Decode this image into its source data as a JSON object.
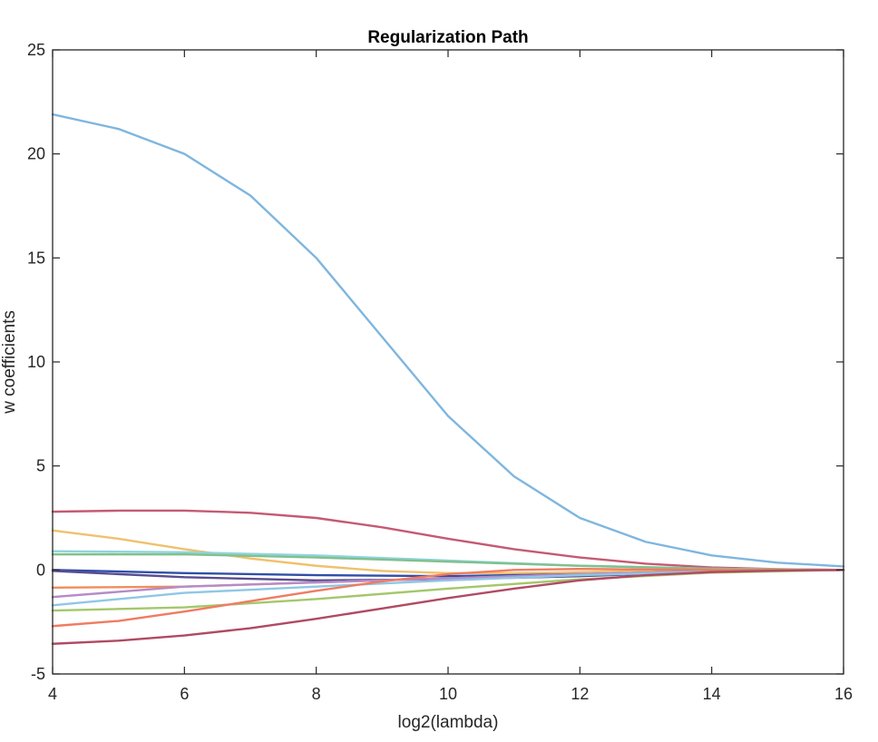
{
  "chart_data": {
    "type": "line",
    "title": "Regularization Path",
    "xlabel": "log2(lambda)",
    "ylabel": "w coefficients",
    "xlim": [
      4,
      16
    ],
    "ylim": [
      -5,
      25
    ],
    "xticks": [
      "4",
      "6",
      "8",
      "10",
      "12",
      "14",
      "16"
    ],
    "yticks": [
      "-5",
      "0",
      "5",
      "10",
      "15",
      "20",
      "25"
    ],
    "grid": false,
    "legend": "none",
    "series": [
      {
        "color": "#7EB6DF",
        "x": [
          4,
          5,
          6,
          7,
          8,
          9,
          10,
          11,
          12,
          13,
          14,
          15,
          16
        ],
        "y": [
          21.9,
          21.2,
          20.0,
          18.0,
          15.0,
          11.2,
          7.4,
          4.5,
          2.5,
          1.35,
          0.7,
          0.35,
          0.17
        ]
      },
      {
        "color": "#C45A73",
        "x": [
          4,
          5,
          6,
          7,
          8,
          9,
          10,
          11,
          12,
          13,
          14,
          15,
          16
        ],
        "y": [
          2.8,
          2.85,
          2.85,
          2.75,
          2.5,
          2.05,
          1.5,
          1.0,
          0.6,
          0.3,
          0.12,
          0.04,
          0.0
        ]
      },
      {
        "color": "#EFC16E",
        "x": [
          4,
          5,
          6,
          7,
          8,
          9,
          10,
          11,
          12,
          13,
          14,
          15,
          16
        ],
        "y": [
          1.9,
          1.5,
          1.0,
          0.55,
          0.2,
          -0.05,
          -0.15,
          -0.15,
          -0.1,
          -0.05,
          -0.02,
          -0.01,
          0.0
        ]
      },
      {
        "color": "#8FD4DE",
        "x": [
          4,
          6,
          8,
          10,
          12,
          14,
          16
        ],
        "y": [
          0.9,
          0.85,
          0.7,
          0.45,
          0.2,
          0.06,
          0.0
        ]
      },
      {
        "color": "#82C08C",
        "x": [
          4,
          6,
          8,
          10,
          12,
          14,
          16
        ],
        "y": [
          0.75,
          0.75,
          0.6,
          0.4,
          0.2,
          0.06,
          0.0
        ]
      },
      {
        "color": "#2F4FA8",
        "x": [
          4,
          6,
          8,
          10,
          12,
          14,
          16
        ],
        "y": [
          0.0,
          -0.15,
          -0.25,
          -0.3,
          -0.2,
          -0.06,
          0.0
        ]
      },
      {
        "color": "#5A4D8F",
        "x": [
          4,
          6,
          8,
          10,
          12,
          14,
          16
        ],
        "y": [
          -0.05,
          -0.35,
          -0.5,
          -0.45,
          -0.3,
          -0.08,
          0.0
        ]
      },
      {
        "color": "#F08D5C",
        "x": [
          4,
          6,
          8,
          10,
          12,
          14,
          16
        ],
        "y": [
          -0.85,
          -0.8,
          -0.6,
          -0.4,
          -0.2,
          -0.06,
          0.0
        ]
      },
      {
        "color": "#B58BC7",
        "x": [
          4,
          6,
          8,
          10,
          12,
          14,
          16
        ],
        "y": [
          -1.3,
          -0.8,
          -0.6,
          -0.4,
          -0.2,
          -0.06,
          0.0
        ]
      },
      {
        "color": "#8FC7E5",
        "x": [
          4,
          6,
          8,
          10,
          12,
          14,
          16
        ],
        "y": [
          -1.7,
          -1.1,
          -0.8,
          -0.5,
          -0.25,
          -0.08,
          0.0
        ]
      },
      {
        "color": "#A4C76B",
        "x": [
          4,
          6,
          8,
          10,
          12,
          14,
          16
        ],
        "y": [
          -1.95,
          -1.8,
          -1.4,
          -0.9,
          -0.45,
          -0.13,
          0.0
        ]
      },
      {
        "color": "#F07B62",
        "x": [
          4,
          5,
          6,
          7,
          8,
          9,
          10,
          11,
          12,
          13,
          14,
          15,
          16
        ],
        "y": [
          -2.7,
          -2.45,
          -2.0,
          -1.5,
          -1.0,
          -0.55,
          -0.2,
          0.0,
          0.05,
          0.02,
          0.0,
          0.0,
          0.0
        ]
      },
      {
        "color": "#B04A64",
        "x": [
          4,
          5,
          6,
          7,
          8,
          9,
          10,
          11,
          12,
          13,
          14,
          15,
          16
        ],
        "y": [
          -3.55,
          -3.4,
          -3.15,
          -2.8,
          -2.35,
          -1.85,
          -1.35,
          -0.9,
          -0.5,
          -0.25,
          -0.1,
          -0.03,
          0.0
        ]
      }
    ]
  }
}
